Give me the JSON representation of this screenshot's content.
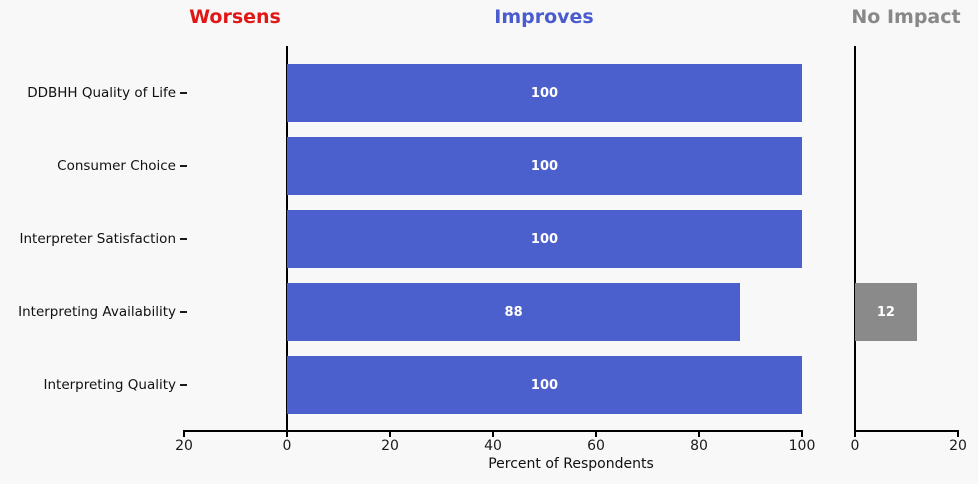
{
  "title_headers": {
    "worsens": "Worsens",
    "improves": "Improves",
    "no_impact": "No Impact"
  },
  "colors": {
    "background": "#f8f8f8",
    "worsens_header": "#e01717",
    "improves_header": "#4a5ccd",
    "no_impact_header": "#888888",
    "improves_bar": "#4b5fcd",
    "no_impact_bar": "#8a8a8a",
    "axis": "#000000",
    "value_label": "#ffffff"
  },
  "chart_data": {
    "type": "bar",
    "orientation": "horizontal",
    "title": "",
    "xlabel": "Percent of Respondents",
    "categories": [
      "DDBHH Quality of Life",
      "Consumer Choice",
      "Interpreter Satisfaction",
      "Interpreting Availability",
      "Interpreting Quality"
    ],
    "series": [
      {
        "name": "Improves",
        "values": [
          100,
          100,
          100,
          88,
          100
        ]
      },
      {
        "name": "No Impact",
        "values": [
          0,
          0,
          0,
          12,
          0
        ]
      },
      {
        "name": "Worsens",
        "values": [
          0,
          0,
          0,
          0,
          0
        ]
      }
    ],
    "value_labels": {
      "improves": [
        "100",
        "100",
        "100",
        "88",
        "100"
      ],
      "no_impact": [
        "",
        "",
        "",
        "12",
        ""
      ]
    },
    "main_axis": {
      "range": [
        -20,
        100
      ],
      "tick_values": [
        -20,
        0,
        20,
        40,
        60,
        80,
        100
      ],
      "tick_labels": [
        "20",
        "0",
        "20",
        "40",
        "60",
        "80",
        "100"
      ]
    },
    "no_impact_axis": {
      "range": [
        0,
        20
      ],
      "tick_values": [
        0,
        20
      ],
      "tick_labels": [
        "0",
        "20"
      ]
    },
    "grid": false,
    "legend_position": "none"
  }
}
